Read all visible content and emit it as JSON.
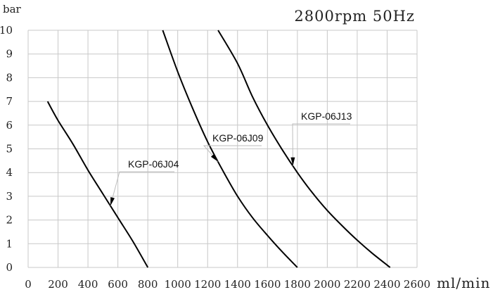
{
  "chart_data": {
    "type": "line",
    "title": "2800rpm 50Hz",
    "xlabel": "ml/min",
    "ylabel": "bar",
    "xlim": [
      0,
      2600
    ],
    "ylim": [
      0,
      10
    ],
    "x_ticks": [
      "0",
      "200",
      "400",
      "600",
      "800",
      "1000",
      "1200",
      "1400",
      "1600",
      "1800",
      "2000",
      "2200",
      "2400",
      "2600"
    ],
    "y_ticks": [
      "0",
      "1",
      "2",
      "3",
      "4",
      "5",
      "6",
      "7",
      "8",
      "9",
      "10"
    ],
    "grid": true,
    "series": [
      {
        "name": "KGP-06J04",
        "points": [
          [
            130,
            7.0
          ],
          [
            200,
            6.2
          ],
          [
            300,
            5.2
          ],
          [
            400,
            4.1
          ],
          [
            500,
            3.1
          ],
          [
            600,
            2.1
          ],
          [
            700,
            1.1
          ],
          [
            800,
            0.0
          ]
        ]
      },
      {
        "name": "KGP-06J09",
        "points": [
          [
            900,
            10.0
          ],
          [
            1000,
            8.25
          ],
          [
            1100,
            6.7
          ],
          [
            1200,
            5.3
          ],
          [
            1300,
            4.1
          ],
          [
            1400,
            3.0
          ],
          [
            1500,
            2.1
          ],
          [
            1600,
            1.35
          ],
          [
            1700,
            0.65
          ],
          [
            1800,
            0.0
          ]
        ]
      },
      {
        "name": "KGP-06J13",
        "points": [
          [
            1270,
            10.0
          ],
          [
            1400,
            8.6
          ],
          [
            1500,
            7.2
          ],
          [
            1600,
            6.0
          ],
          [
            1700,
            4.95
          ],
          [
            1800,
            4.0
          ],
          [
            1900,
            3.15
          ],
          [
            2000,
            2.4
          ],
          [
            2100,
            1.75
          ],
          [
            2200,
            1.15
          ],
          [
            2300,
            0.6
          ],
          [
            2420,
            0.0
          ]
        ]
      }
    ]
  }
}
